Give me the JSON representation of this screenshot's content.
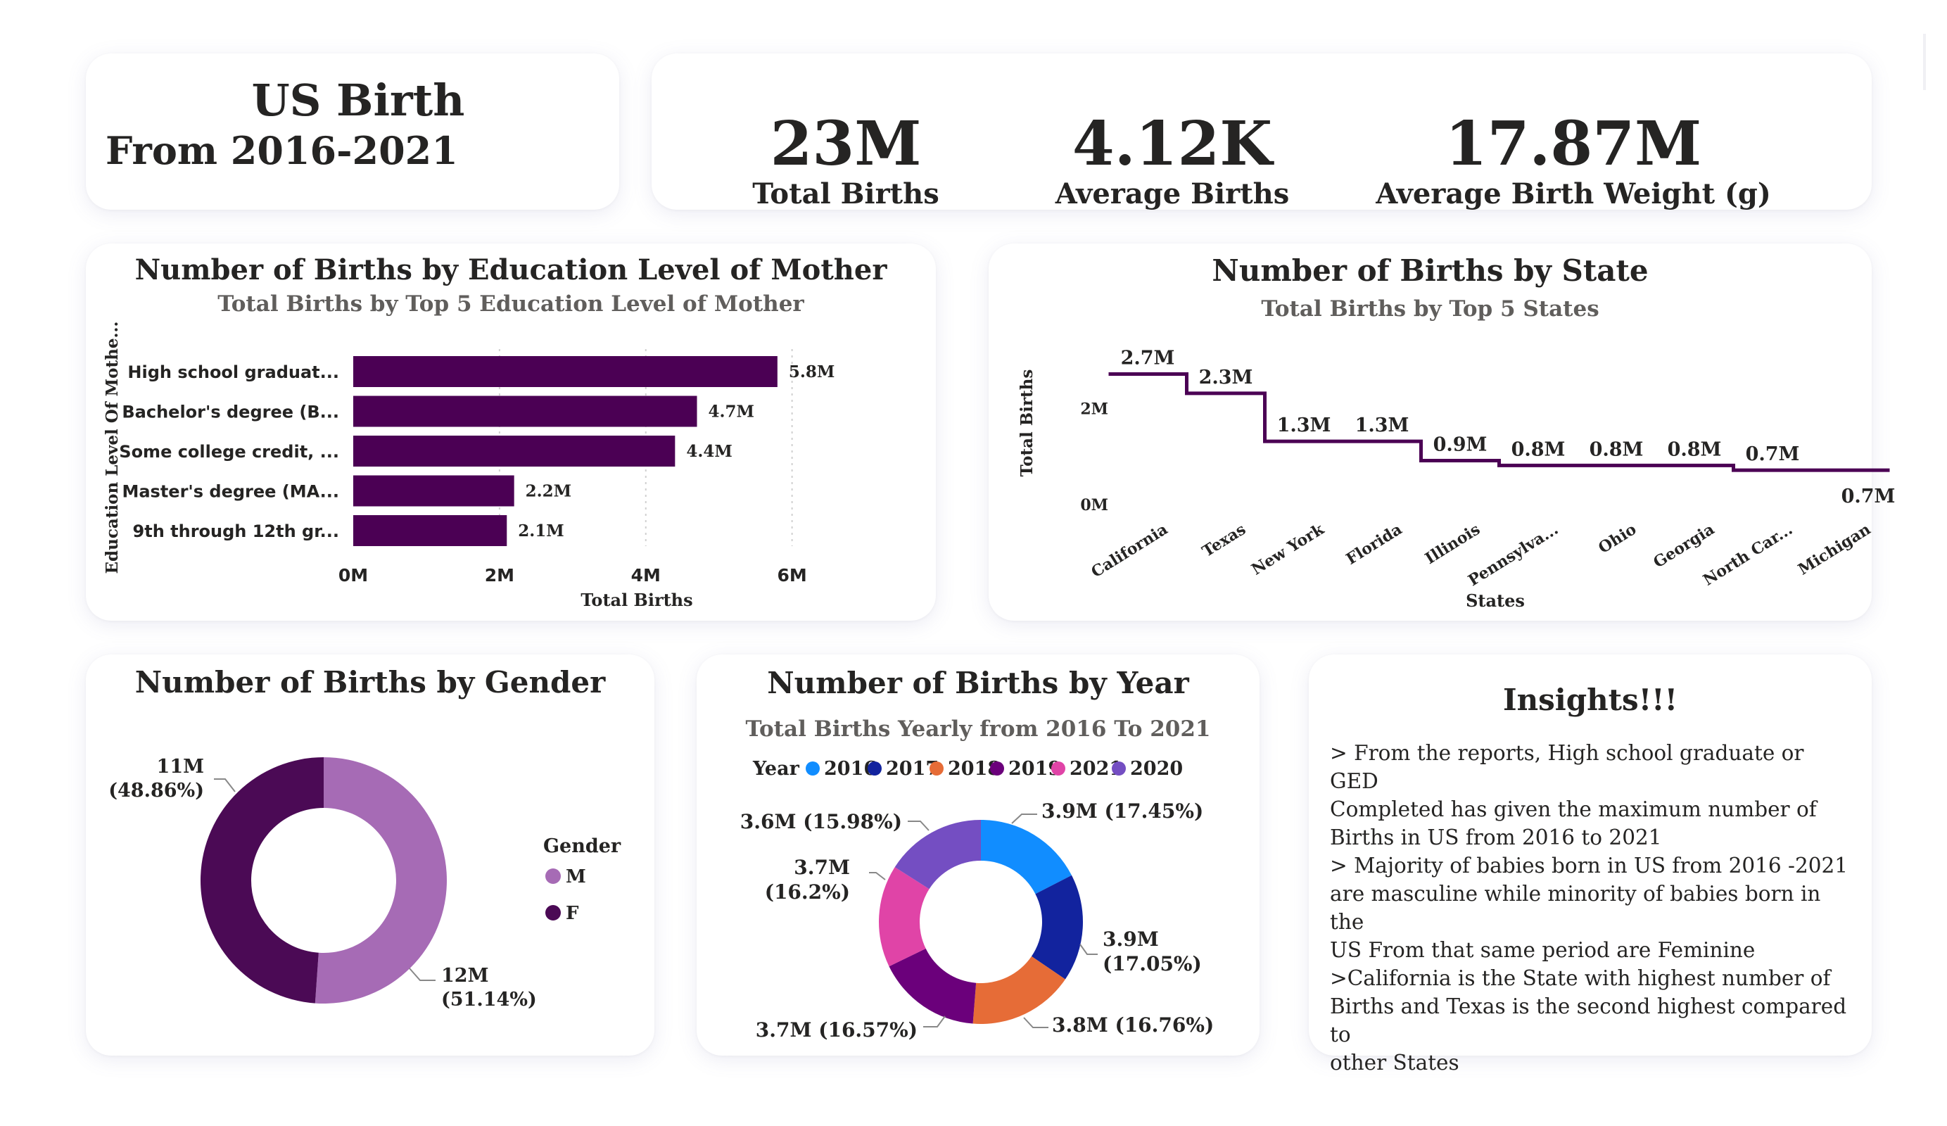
{
  "header": {
    "title": "US Birth",
    "subtitle": "From 2016-2021"
  },
  "kpis": [
    {
      "value": "23M",
      "label": "Total Births"
    },
    {
      "value": "4.12K",
      "label": "Average Births"
    },
    {
      "value": "17.87M",
      "label": "Average Birth Weight (g)"
    }
  ],
  "education_card": {
    "title": "Number of Births by Education Level of Mother"
  },
  "state_card": {
    "title": "Number of Births by State"
  },
  "gender_card": {
    "title": "Number of Births by Gender"
  },
  "year_card": {
    "title": "Number of Births by Year"
  },
  "insights": {
    "title": "Insights!!!",
    "lines": [
      "> From the reports, High school graduate or GED",
      "Completed has given the maximum number of",
      "Births in US from 2016 to 2021",
      "> Majority of babies born in US  from 2016 -2021",
      "are masculine while minority of babies born in the",
      "US From that same period are Feminine",
      ">California is the State with highest number of",
      "Births and Texas is the second highest compared to",
      "other States"
    ]
  },
  "colors": {
    "purple_dark": "#4b0054",
    "gender_m": "#a66bb5",
    "gender_f": "#4b0a55",
    "year_2016": "#118dff",
    "year_2017": "#12239e",
    "year_2018": "#e66c37",
    "year_2019": "#6b007b",
    "year_2021": "#e044a7",
    "year_2020": "#744ec2"
  },
  "chart_data": [
    {
      "type": "bar",
      "orientation": "horizontal",
      "subtitle": "Total Births by Top 5 Education Level of Mother",
      "xlabel": "Total Births",
      "ylabel": "Education Level Of Mothe...",
      "categories": [
        "High school graduat...",
        "Bachelor's degree (B...",
        "Some college credit, ...",
        "Master's degree (MA...",
        "9th through 12th gr..."
      ],
      "values": [
        5.8,
        4.7,
        4.4,
        2.2,
        2.1
      ],
      "value_labels": [
        "5.8M",
        "4.7M",
        "4.4M",
        "2.2M",
        "2.1M"
      ],
      "units": "M",
      "xlim": [
        0,
        6.6
      ],
      "xticks": [
        0,
        2,
        4,
        6
      ],
      "xtick_labels": [
        "0M",
        "2M",
        "4M",
        "6M"
      ],
      "grid": true
    },
    {
      "type": "line",
      "step": true,
      "subtitle": "Total Births by Top 5 States",
      "xlabel": "States",
      "ylabel": "Total Births",
      "categories": [
        "California",
        "Texas",
        "New York",
        "Florida",
        "Illinois",
        "Pennsylva...",
        "Ohio",
        "Georgia",
        "North Car...",
        "Michigan"
      ],
      "values": [
        2.7,
        2.3,
        1.3,
        1.3,
        0.9,
        0.8,
        0.8,
        0.8,
        0.7,
        0.7
      ],
      "value_labels": [
        "2.7M",
        "2.3M",
        "1.3M",
        "1.3M",
        "0.9M",
        "0.8M",
        "0.8M",
        "0.8M",
        "0.7M",
        "0.7M"
      ],
      "units": "M",
      "ylim": [
        0,
        3.0
      ],
      "yticks": [
        0,
        2
      ],
      "ytick_labels": [
        "0M",
        "2M"
      ],
      "grid": false
    },
    {
      "type": "pie",
      "donut": true,
      "legend_title": "Gender",
      "legend_position": "right",
      "categories": [
        "M",
        "F"
      ],
      "values": [
        11.75,
        11.24
      ],
      "percents": [
        51.14,
        48.86
      ],
      "labels": [
        "12M\n(51.14%)",
        "11M\n(48.86%)"
      ]
    },
    {
      "type": "pie",
      "donut": true,
      "subtitle": "Total Births  Yearly from 2016 To 2021",
      "legend_title": "Year",
      "legend_position": "top",
      "categories": [
        "2016",
        "2017",
        "2018",
        "2019",
        "2021",
        "2020"
      ],
      "values": [
        3.9,
        3.9,
        3.8,
        3.7,
        3.7,
        3.6
      ],
      "percents": [
        17.45,
        17.05,
        16.76,
        16.57,
        16.2,
        15.98
      ],
      "labels": [
        "3.9M (17.45%)",
        "3.9M\n(17.05%)",
        "3.8M (16.76%)",
        "3.7M (16.57%)",
        "3.7M\n(16.2%)",
        "3.6M (15.98%)"
      ]
    }
  ]
}
